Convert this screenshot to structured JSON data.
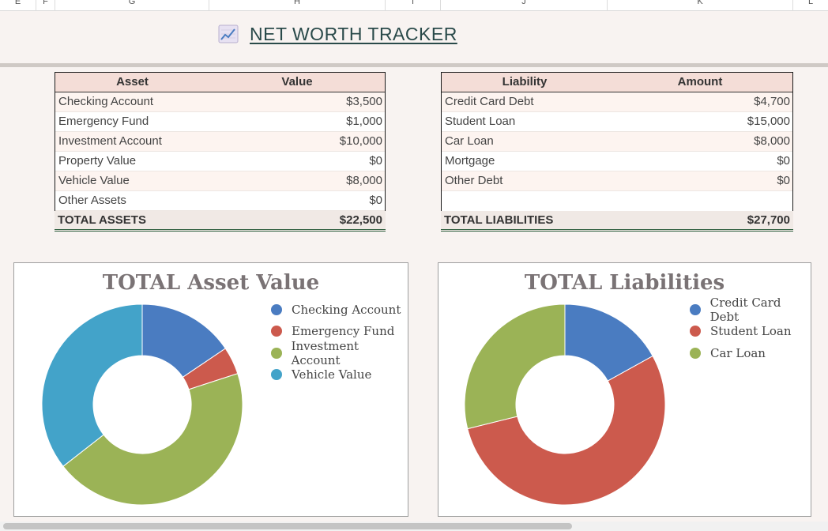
{
  "column_headers": [
    "E",
    "F",
    "G",
    "H",
    "I",
    "J",
    "K",
    "L"
  ],
  "title": {
    "icon": "chart-increasing-icon",
    "text": "NET WORTH TRACKER"
  },
  "assets": {
    "headers": [
      "Asset",
      "Value"
    ],
    "rows": [
      {
        "name": "Checking Account",
        "value": "$3,500"
      },
      {
        "name": "Emergency Fund",
        "value": "$1,000"
      },
      {
        "name": "Investment Account",
        "value": "$10,000"
      },
      {
        "name": "Property Value",
        "value": "$0"
      },
      {
        "name": "Vehicle Value",
        "value": "$8,000"
      },
      {
        "name": "Other Assets",
        "value": "$0"
      }
    ],
    "total_label": "TOTAL ASSETS",
    "total_value": "$22,500"
  },
  "liabilities": {
    "headers": [
      "Liability",
      "Amount"
    ],
    "rows": [
      {
        "name": "Credit Card Debt",
        "value": "$4,700"
      },
      {
        "name": "Student Loan",
        "value": "$15,000"
      },
      {
        "name": "Car Loan",
        "value": "$8,000"
      },
      {
        "name": "Mortgage",
        "value": "$0"
      },
      {
        "name": "Other Debt",
        "value": "$0"
      }
    ],
    "total_label": "TOTAL LIABILITIES",
    "total_value": "$27,700"
  },
  "colors": {
    "blue": "#4a7cc1",
    "red": "#cc5a4d",
    "green": "#9bb356",
    "cyan": "#43a3c9",
    "accent_green": "#2e5e3e"
  },
  "chart_data": [
    {
      "type": "pie",
      "title": "TOTAL Asset Value",
      "categories": [
        "Checking Account",
        "Emergency Fund",
        "Investment Account",
        "Vehicle Value"
      ],
      "values": [
        3500,
        1000,
        10000,
        8000
      ],
      "colors": [
        "#4a7cc1",
        "#cc5a4d",
        "#9bb356",
        "#43a3c9"
      ],
      "legend": "right"
    },
    {
      "type": "pie",
      "title": "TOTAL Liabilities",
      "categories": [
        "Credit Card Debt",
        "Student Loan",
        "Car Loan"
      ],
      "values": [
        4700,
        15000,
        8000
      ],
      "colors": [
        "#4a7cc1",
        "#cc5a4d",
        "#9bb356"
      ],
      "legend": "right"
    }
  ]
}
